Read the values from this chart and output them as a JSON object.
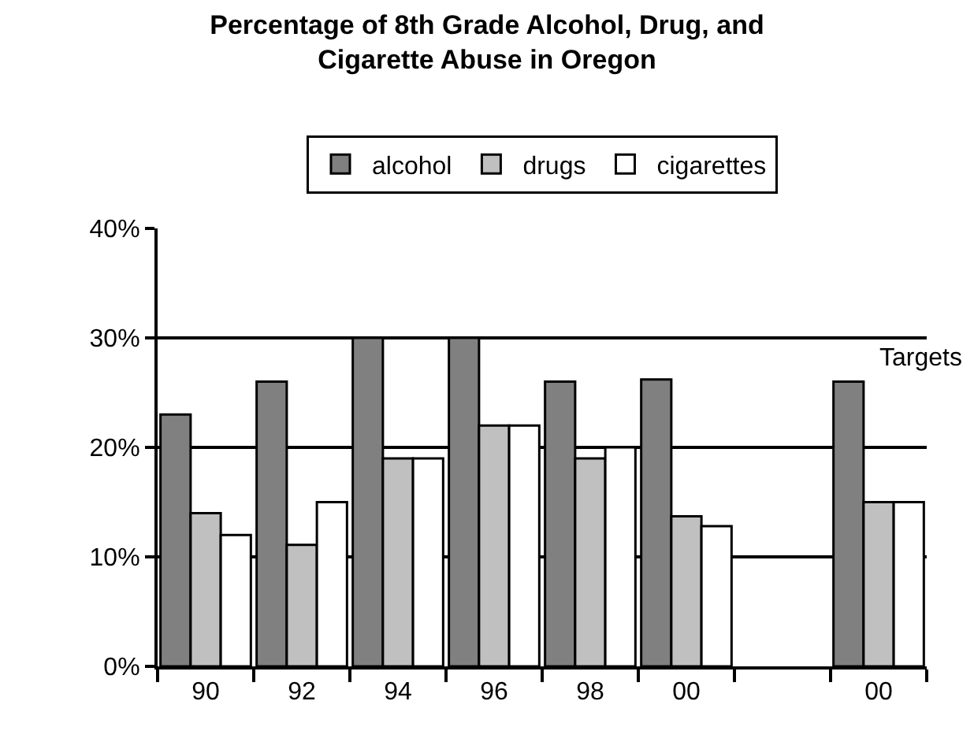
{
  "chart_data": {
    "type": "bar",
    "title": "Percentage of 8th Grade Alcohol, Drug, and\nCigarette Abuse in Oregon",
    "categories": [
      "90",
      "92",
      "94",
      "96",
      "98",
      "00",
      null,
      "00"
    ],
    "series": [
      {
        "name": "alcohol",
        "color": "#808080",
        "values": [
          23,
          26,
          30,
          30,
          26,
          26.2,
          null,
          26
        ]
      },
      {
        "name": "drugs",
        "color": "#c0c0c0",
        "values": [
          14,
          11.1,
          19,
          22,
          19,
          13.7,
          null,
          15
        ]
      },
      {
        "name": "cigarettes",
        "color": "#ffffff",
        "values": [
          12,
          15,
          19,
          22,
          20,
          12.8,
          null,
          15
        ]
      }
    ],
    "ylim": [
      0,
      40
    ],
    "yticks": [
      {
        "value": 0,
        "label": "0%"
      },
      {
        "value": 10,
        "label": "10%"
      },
      {
        "value": 20,
        "label": "20%"
      },
      {
        "value": 30,
        "label": "30%"
      },
      {
        "value": 40,
        "label": "40%"
      }
    ],
    "annotations": [
      "Targets"
    ],
    "grid": "y",
    "legend": "top"
  }
}
